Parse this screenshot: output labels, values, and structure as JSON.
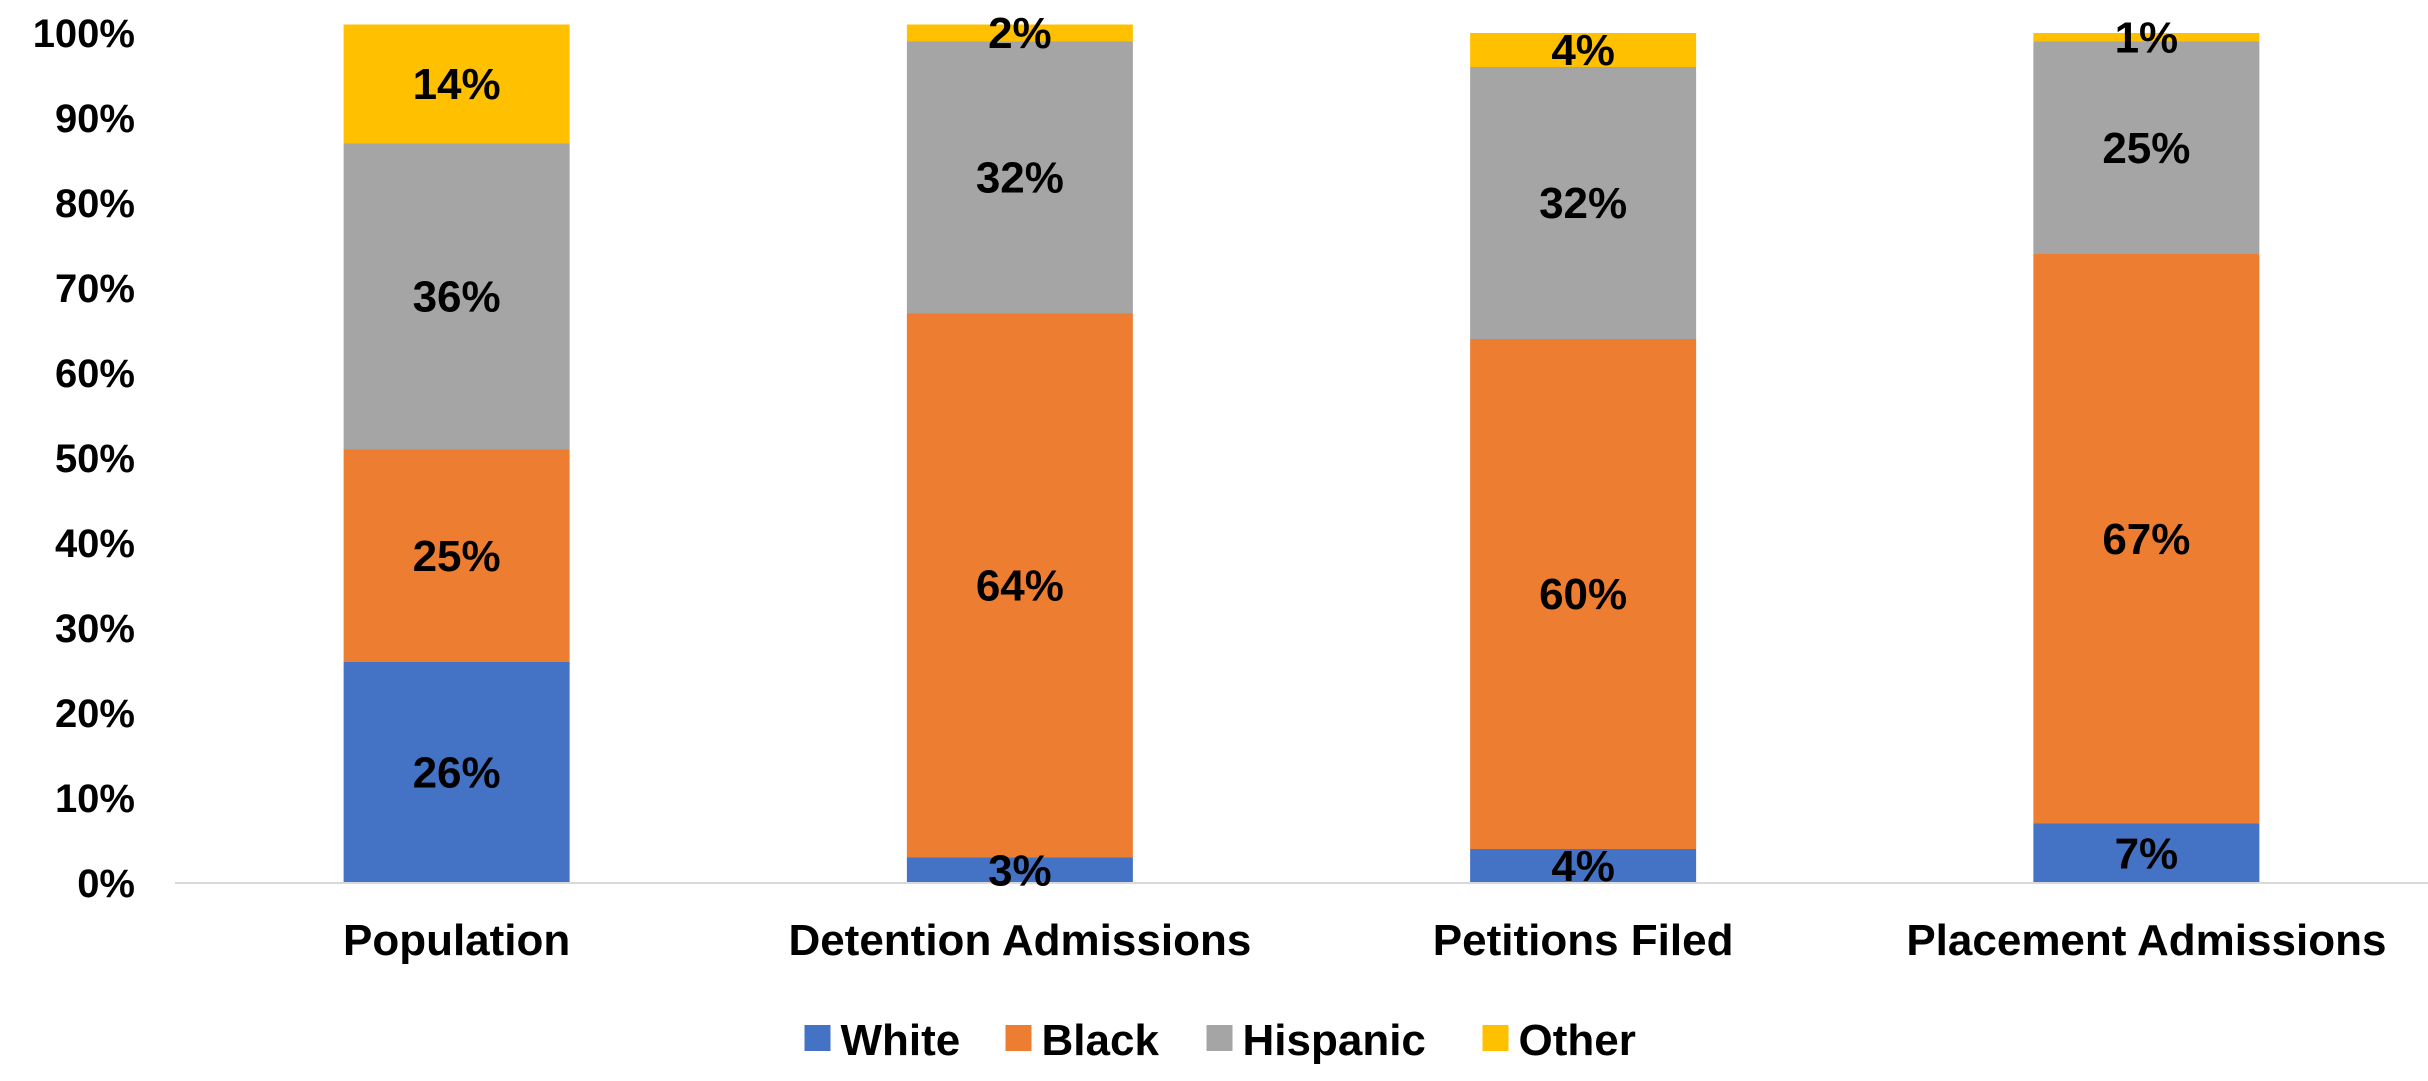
{
  "chart_data": {
    "type": "bar",
    "stacked": true,
    "categories": [
      "Population",
      "Detention Admissions",
      "Petitions Filed",
      "Placement Admissions"
    ],
    "series": [
      {
        "name": "White",
        "color": "#4472C4",
        "values": [
          26,
          3,
          4,
          7
        ]
      },
      {
        "name": "Black",
        "color": "#ED7D31",
        "values": [
          25,
          64,
          60,
          67
        ]
      },
      {
        "name": "Hispanic",
        "color": "#A5A5A5",
        "values": [
          36,
          32,
          32,
          25
        ]
      },
      {
        "name": "Other",
        "color": "#FFC000",
        "values": [
          14,
          2,
          4,
          1
        ]
      }
    ],
    "data_labels": [
      [
        "26%",
        "3%",
        "4%",
        "7%"
      ],
      [
        "25%",
        "64%",
        "60%",
        "67%"
      ],
      [
        "36%",
        "32%",
        "32%",
        "25%"
      ],
      [
        "14%",
        "2%",
        "4%",
        "1%"
      ]
    ],
    "y_ticks": [
      "0%",
      "10%",
      "20%",
      "30%",
      "40%",
      "50%",
      "60%",
      "70%",
      "80%",
      "90%",
      "100%"
    ],
    "ylim": [
      0,
      100
    ],
    "title": "",
    "xlabel": "",
    "ylabel": "",
    "grid": false,
    "legend_position": "bottom"
  }
}
